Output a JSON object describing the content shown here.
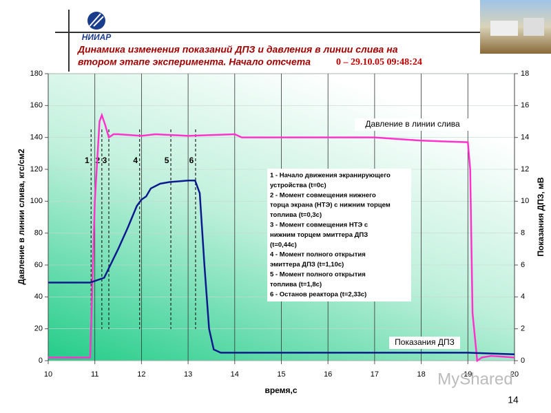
{
  "header": {
    "logo": "НИИАР",
    "title_lines": [
      "Динамика изменения показаний ДПЗ и давления в линии слива на",
      "втором этапе эксперимента.  Начало отсчета"
    ],
    "title_time": "0 – 29.10.05 09:48:24"
  },
  "chart_data": {
    "type": "line",
    "xlabel": "время,с",
    "ylabel": "Давление в линии слива, кгс/см2",
    "y2label": "Показания ДПЗ, мВ",
    "xlim": [
      10,
      20
    ],
    "xticks": [
      10,
      11,
      12,
      13,
      14,
      15,
      16,
      17,
      18,
      19,
      20
    ],
    "ylim": [
      0,
      180
    ],
    "yticks": [
      0,
      20,
      40,
      60,
      80,
      100,
      120,
      140,
      160,
      180
    ],
    "y2lim": [
      0,
      18
    ],
    "y2ticks": [
      0,
      2,
      4,
      6,
      8,
      10,
      12,
      14,
      16,
      18
    ],
    "grid": true,
    "series": [
      {
        "name": "Давление в линии слива",
        "color": "#ff33cc",
        "x": [
          10,
          10.9,
          11.0,
          11.1,
          11.15,
          11.22,
          11.3,
          11.4,
          11.5,
          12,
          12.3,
          13,
          14,
          14.15,
          15,
          16,
          17,
          17.5,
          18,
          19.0,
          19.05,
          19.1,
          19.2,
          19.3,
          19.5,
          20
        ],
        "values": [
          2,
          2,
          100,
          150,
          154,
          148,
          140,
          142,
          142,
          141,
          142,
          141,
          142,
          140,
          140,
          140,
          140,
          139,
          138,
          137,
          120,
          30,
          0,
          2,
          3,
          2
        ]
      },
      {
        "name": "Показания ДПЗ",
        "color": "#0a1a8c",
        "axis": "y2",
        "x": [
          10,
          10.9,
          11.0,
          11.2,
          11.3,
          11.5,
          11.7,
          11.9,
          12.0,
          12.1,
          12.2,
          12.4,
          12.6,
          13.0,
          13.15,
          13.25,
          13.35,
          13.45,
          13.55,
          13.7,
          15,
          17,
          19,
          20
        ],
        "values": [
          4.9,
          4.9,
          5.0,
          5.2,
          5.8,
          7.0,
          8.3,
          9.7,
          10.1,
          10.3,
          10.8,
          11.1,
          11.2,
          11.3,
          11.3,
          10.5,
          6,
          2,
          0.7,
          0.5,
          0.5,
          0.5,
          0.5,
          0.4
        ]
      }
    ],
    "markers": [
      {
        "label": "1",
        "x": 10.92
      },
      {
        "label": "2",
        "x": 11.15
      },
      {
        "label": "3",
        "x": 11.3
      },
      {
        "label": "4",
        "x": 11.96
      },
      {
        "label": "5",
        "x": 12.63
      },
      {
        "label": "6",
        "x": 13.16
      }
    ],
    "annotation": [
      "1 - Начало движения экранирующего",
      "устройства (t=0c)",
      "2 - Момент совмещения нижнего",
      "торца экрана (НТЭ) с нижним торцем",
      "топлива (t=0,3c)",
      "3 - Момент совмещения НТЭ с",
      "нижним торцем эмиттера ДПЗ",
      "(t=0,44c)",
      "4 - Момент полного открытия",
      "эмиттера ДПЗ (t=1,10c)",
      "5 - Момент полного открытия",
      "топлива (t=1,8c)",
      "6 - Останов реактора (t=2,33c)"
    ]
  },
  "footer": {
    "watermark": "MyShared",
    "page_number": "14"
  }
}
